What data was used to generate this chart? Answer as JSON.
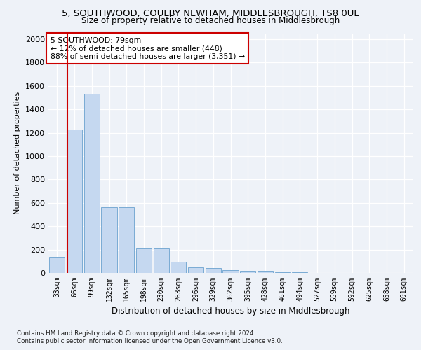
{
  "title1": "5, SOUTHWOOD, COULBY NEWHAM, MIDDLESBROUGH, TS8 0UE",
  "title2": "Size of property relative to detached houses in Middlesbrough",
  "xlabel": "Distribution of detached houses by size in Middlesbrough",
  "ylabel": "Number of detached properties",
  "categories": [
    "33sqm",
    "66sqm",
    "99sqm",
    "132sqm",
    "165sqm",
    "198sqm",
    "230sqm",
    "263sqm",
    "296sqm",
    "329sqm",
    "362sqm",
    "395sqm",
    "428sqm",
    "461sqm",
    "494sqm",
    "527sqm",
    "559sqm",
    "592sqm",
    "625sqm",
    "658sqm",
    "691sqm"
  ],
  "values": [
    140,
    1230,
    1530,
    560,
    560,
    210,
    210,
    95,
    50,
    40,
    25,
    15,
    15,
    5,
    5,
    2,
    2,
    1,
    1,
    1,
    1
  ],
  "bar_color": "#c5d8f0",
  "bar_edge_color": "#7aabd4",
  "vline_color": "#cc0000",
  "annotation_text": "5 SOUTHWOOD: 79sqm\n← 12% of detached houses are smaller (448)\n88% of semi-detached houses are larger (3,351) →",
  "annotation_box_color": "#ffffff",
  "annotation_box_edge": "#cc0000",
  "ylim": [
    0,
    2050
  ],
  "yticks": [
    0,
    200,
    400,
    600,
    800,
    1000,
    1200,
    1400,
    1600,
    1800,
    2000
  ],
  "footer1": "Contains HM Land Registry data © Crown copyright and database right 2024.",
  "footer2": "Contains public sector information licensed under the Open Government Licence v3.0.",
  "bg_color": "#eef2f8",
  "plot_bg_color": "#eef2f8"
}
